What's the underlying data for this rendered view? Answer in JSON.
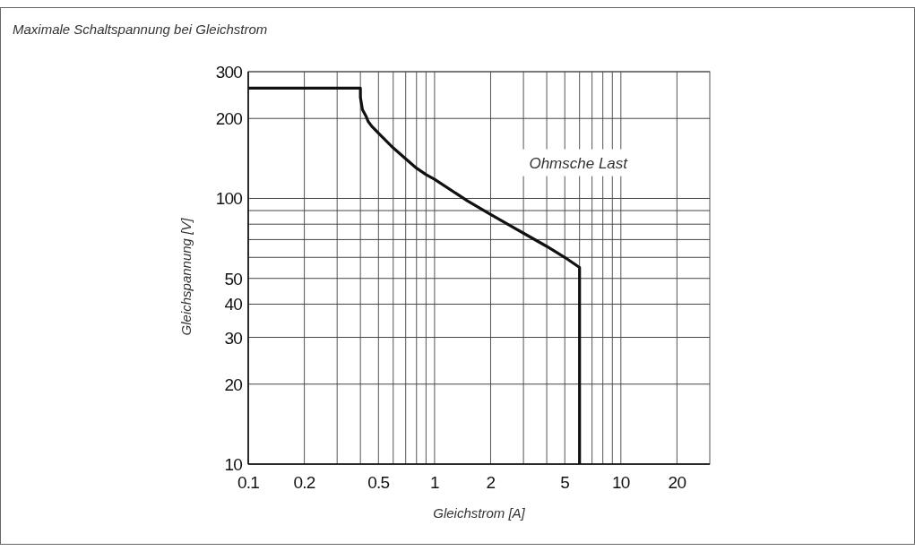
{
  "chart_data": {
    "type": "line",
    "title": "Maximale Schaltspannung bei Gleichstrom",
    "xlabel": "Gleichstrom [A]",
    "ylabel": "Gleichspannung [V]",
    "log": "xy",
    "xlim": [
      0.1,
      30
    ],
    "ylim": [
      10,
      300
    ],
    "xticks": [
      0.1,
      0.2,
      {
        "value": 0.3,
        "label": null
      },
      {
        "value": 0.4,
        "label": null
      },
      0.5,
      {
        "value": 0.6,
        "label": null
      },
      {
        "value": 0.7,
        "label": null
      },
      {
        "value": 0.8,
        "label": null
      },
      {
        "value": 0.9,
        "label": null
      },
      1,
      2,
      {
        "value": 3,
        "label": null
      },
      {
        "value": 4,
        "label": null
      },
      5,
      {
        "value": 6,
        "label": null
      },
      {
        "value": 7,
        "label": null
      },
      {
        "value": 8,
        "label": null
      },
      {
        "value": 9,
        "label": null
      },
      10,
      20
    ],
    "yticks": [
      10,
      20,
      30,
      40,
      50,
      {
        "value": 60,
        "label": null
      },
      {
        "value": 70,
        "label": null
      },
      {
        "value": 80,
        "label": null
      },
      {
        "value": 90,
        "label": null
      },
      100,
      200,
      300
    ],
    "grid": true,
    "annotations": [
      "Ohmsche Last"
    ],
    "series": [
      {
        "color": "#111111",
        "x": [
          0.1,
          0.4,
          0.4,
          0.41,
          0.43,
          0.44,
          0.46,
          0.5,
          0.6,
          0.7,
          0.8,
          0.9,
          1,
          1.5,
          2,
          3,
          4,
          5,
          6,
          6
        ],
        "values": [
          260,
          260,
          240,
          216,
          203,
          195,
          187,
          176,
          155,
          141,
          130,
          123,
          118,
          98,
          87,
          74,
          66,
          60,
          55,
          10
        ]
      }
    ]
  }
}
